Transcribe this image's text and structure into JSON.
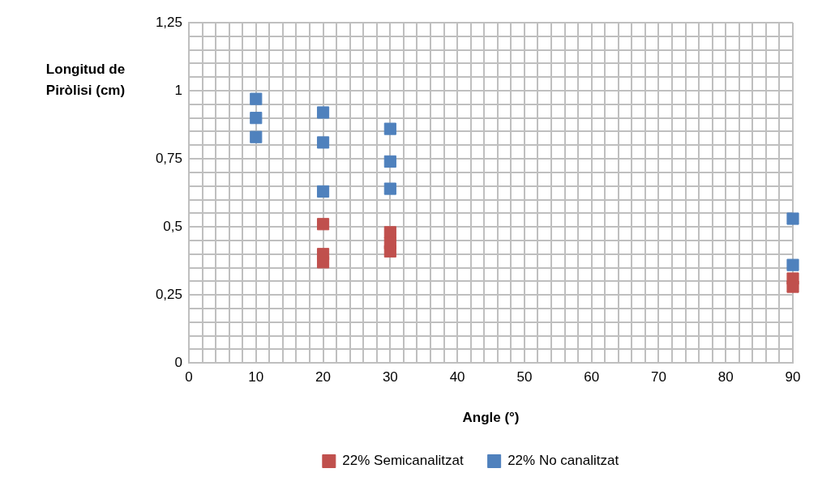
{
  "chart_data": {
    "type": "scatter",
    "xlabel": "Angle (°)",
    "ylabel": "Longitud de Piròlisi (cm)",
    "marker": "square",
    "legend": "bottom",
    "grid": true,
    "xlim": [
      0,
      90
    ],
    "ylim": [
      0,
      1.25
    ],
    "xticks": [
      0,
      {
        "value": 2,
        "label": null
      },
      {
        "value": 4,
        "label": null
      },
      {
        "value": 6,
        "label": null
      },
      {
        "value": 8,
        "label": null
      },
      10,
      {
        "value": 12,
        "label": null
      },
      {
        "value": 14,
        "label": null
      },
      {
        "value": 16,
        "label": null
      },
      {
        "value": 18,
        "label": null
      },
      20,
      {
        "value": 22,
        "label": null
      },
      {
        "value": 24,
        "label": null
      },
      {
        "value": 26,
        "label": null
      },
      {
        "value": 28,
        "label": null
      },
      30,
      {
        "value": 32,
        "label": null
      },
      {
        "value": 34,
        "label": null
      },
      {
        "value": 36,
        "label": null
      },
      {
        "value": 38,
        "label": null
      },
      40,
      {
        "value": 42,
        "label": null
      },
      {
        "value": 44,
        "label": null
      },
      {
        "value": 46,
        "label": null
      },
      {
        "value": 48,
        "label": null
      },
      50,
      {
        "value": 52,
        "label": null
      },
      {
        "value": 54,
        "label": null
      },
      {
        "value": 56,
        "label": null
      },
      {
        "value": 58,
        "label": null
      },
      60,
      {
        "value": 62,
        "label": null
      },
      {
        "value": 64,
        "label": null
      },
      {
        "value": 66,
        "label": null
      },
      {
        "value": 68,
        "label": null
      },
      70,
      {
        "value": 72,
        "label": null
      },
      {
        "value": 74,
        "label": null
      },
      {
        "value": 76,
        "label": null
      },
      {
        "value": 78,
        "label": null
      },
      80,
      {
        "value": 82,
        "label": null
      },
      {
        "value": 84,
        "label": null
      },
      {
        "value": 86,
        "label": null
      },
      {
        "value": 88,
        "label": null
      },
      90
    ],
    "yticks": [
      {
        "value": 0,
        "label": "0"
      },
      {
        "value": 0.05,
        "label": null
      },
      {
        "value": 0.1,
        "label": null
      },
      {
        "value": 0.15,
        "label": null
      },
      {
        "value": 0.2,
        "label": null
      },
      {
        "value": 0.25,
        "label": "0,25"
      },
      {
        "value": 0.3,
        "label": null
      },
      {
        "value": 0.35,
        "label": null
      },
      {
        "value": 0.4,
        "label": null
      },
      {
        "value": 0.45,
        "label": null
      },
      {
        "value": 0.5,
        "label": "0,5"
      },
      {
        "value": 0.55,
        "label": null
      },
      {
        "value": 0.6,
        "label": null
      },
      {
        "value": 0.65,
        "label": null
      },
      {
        "value": 0.7,
        "label": null
      },
      {
        "value": 0.75,
        "label": "0,75"
      },
      {
        "value": 0.8,
        "label": null
      },
      {
        "value": 0.85,
        "label": null
      },
      {
        "value": 0.9,
        "label": null
      },
      {
        "value": 0.95,
        "label": null
      },
      {
        "value": 1,
        "label": "1"
      },
      {
        "value": 1.05,
        "label": null
      },
      {
        "value": 1.1,
        "label": null
      },
      {
        "value": 1.15,
        "label": null
      },
      {
        "value": 1.2,
        "label": null
      },
      {
        "value": 1.25,
        "label": "1,25"
      }
    ],
    "series": [
      {
        "name": "22% Semicanalitzat",
        "color": "#c0504d",
        "x": [
          20,
          20,
          20,
          30,
          30,
          30,
          90,
          90
        ],
        "values": [
          0.51,
          0.4,
          0.37,
          0.48,
          0.44,
          0.41,
          0.31,
          0.28
        ]
      },
      {
        "name": "22% No canalitzat",
        "color": "#4f81bd",
        "x": [
          10,
          10,
          10,
          20,
          20,
          20,
          30,
          30,
          30,
          90,
          90
        ],
        "values": [
          0.97,
          0.9,
          0.83,
          0.92,
          0.81,
          0.63,
          0.86,
          0.74,
          0.64,
          0.53,
          0.36
        ]
      }
    ]
  }
}
